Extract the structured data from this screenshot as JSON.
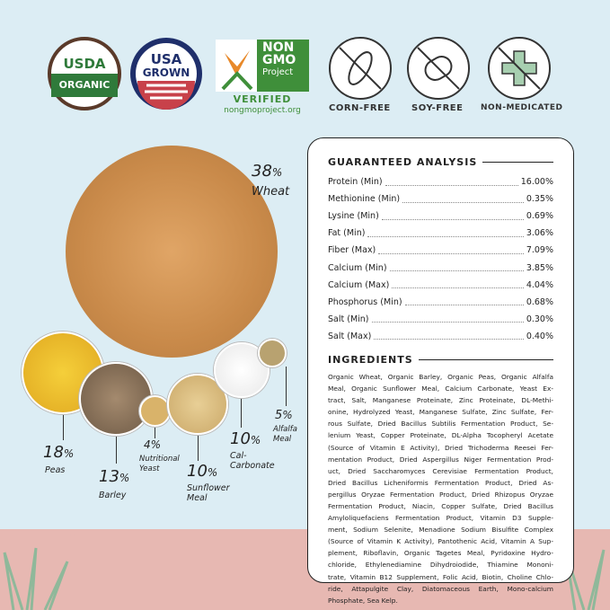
{
  "badges": {
    "usda": {
      "top": "USDA",
      "bottom": "ORGANIC"
    },
    "usa": {
      "top": "USA",
      "bottom": "GROWN"
    },
    "nongmo": {
      "line1": "NON",
      "line2": "GMO",
      "line3": "Project",
      "verified": "VERIFIED",
      "url": "nongmoproject.org"
    },
    "corn_free": "CORN-FREE",
    "soy_free": "SOY-FREE",
    "non_medicated": "NON-MEDICATED"
  },
  "grains": [
    {
      "percent": "38",
      "name": "Wheat"
    },
    {
      "percent": "18",
      "name": "Peas"
    },
    {
      "percent": "13",
      "name": "Barley"
    },
    {
      "percent": "4",
      "name": "Nutritional Yeast"
    },
    {
      "percent": "10",
      "name": "Sunflower Meal"
    },
    {
      "percent": "10",
      "name": "Cal-Carbonate"
    },
    {
      "percent": "5",
      "name": "Alfalfa Meal"
    }
  ],
  "percent_sign": "%",
  "analysis": {
    "title": "GUARANTEED ANALYSIS",
    "rows": [
      {
        "label": "Protein (Min)",
        "value": "16.00%"
      },
      {
        "label": "Methionine (Min)",
        "value": "0.35%"
      },
      {
        "label": "Lysine (Min)",
        "value": "0.69%"
      },
      {
        "label": "Fat (Min)",
        "value": "3.06%"
      },
      {
        "label": "Fiber (Max)",
        "value": "7.09%"
      },
      {
        "label": "Calcium (Min)",
        "value": "3.85%"
      },
      {
        "label": "Calcium (Max)",
        "value": "4.04%"
      },
      {
        "label": "Phosphorus (Min)",
        "value": "0.68%"
      },
      {
        "label": "Salt (Min)",
        "value": "0.30%"
      },
      {
        "label": "Salt (Max)",
        "value": "0.40%"
      }
    ]
  },
  "ingredients": {
    "title": "INGREDIENTS",
    "lines": [
      "Organic Wheat, Organic Barley, Organic Peas, Organic Alfalfa",
      "Meal, Organic Sunflower Meal, Calcium Carbonate, Yeast Ex-",
      "tract, Salt, Manganese Proteinate, Zinc Proteinate, DL-Methi-",
      "onine, Hydrolyzed Yeast, Manganese Sulfate, Zinc Sulfate, Fer-",
      "rous Sulfate, Dried Bacillus Subtilis Fermentation Product, Se-",
      "lenium Yeast, Copper Proteinate, DL-Alpha Tocopheryl Acetate",
      "(Source of Vitamin E Activity), Dried Trichoderma Reesei Fer-",
      "mentation Product, Dried Aspergillus Niger Fermentation Prod-",
      "uct, Dried Saccharomyces Cerevisiae Fermentation Product,",
      "Dried Bacillus Licheniformis Fermentation Product, Dried As-",
      "pergillus Oryzae Fermentation Product, Dried Rhizopus Oryzae",
      "Fermentation Product, Niacin, Copper Sulfate, Dried Bacillus",
      "Amyloliquefaciens Fermentation Product, Vitamin D3 Supple-",
      "ment, Sodium Selenite, Menadione Sodium Bisulfite Complex",
      "(Source of Vitamin K Activity), Pantothenic Acid, Vitamin A Sup-",
      "plement, Riboflavin, Organic Tagetes Meal, Pyridoxine Hydro-",
      "chloride, Ethylenediamine Dihydroiodide, Thiamine Mononi-",
      "trate, Vitamin B12 Supplement, Folic Acid, Biotin, Choline Chlo-",
      "ride, Attapulgite Clay, Diatomaceous Earth, Mono-calcium",
      "Phosphate, Sea Kelp."
    ]
  },
  "colors": {
    "background": "#dcedf4",
    "ground": "#e7b8b2",
    "usda_green": "#2f7a3a",
    "usa_navy": "#1f2f6b",
    "nongmo_green": "#3f8f3a",
    "grass": "#8fb89a"
  }
}
